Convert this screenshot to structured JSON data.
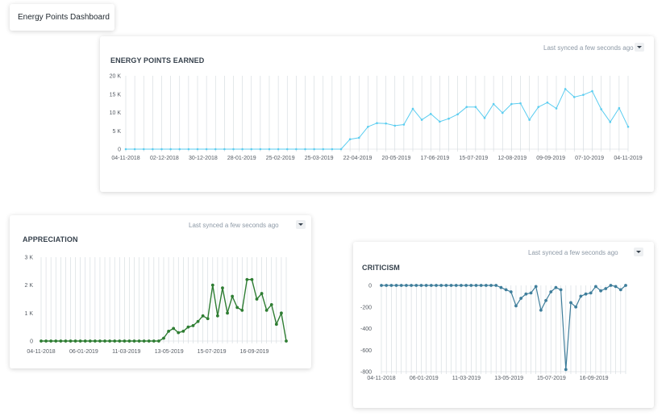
{
  "dashboard": {
    "title": "Energy Points Dashboard"
  },
  "sync_label": "Last synced a few seconds ago",
  "colors": {
    "energy": "#5bcdf0",
    "appreciation": "#2e7d32",
    "criticism": "#3f7e9b",
    "grid": "#d1d8dd"
  },
  "chart_data": [
    {
      "id": "energy",
      "type": "line",
      "title": "ENERGY POINTS EARNED",
      "ylim": [
        0,
        20000
      ],
      "yticks": [
        "0",
        "5 K",
        "10 K",
        "15 K",
        "20 K"
      ],
      "xtick_labels": [
        "04-11-2018",
        "02-12-2018",
        "30-12-2018",
        "28-01-2019",
        "25-02-2019",
        "25-03-2019",
        "22-04-2019",
        "20-05-2019",
        "17-06-2019",
        "15-07-2019",
        "12-08-2019",
        "09-09-2019",
        "07-10-2019",
        "04-11-2019"
      ],
      "values": [
        0,
        0,
        0,
        0,
        0,
        0,
        0,
        0,
        0,
        0,
        0,
        0,
        0,
        0,
        0,
        0,
        0,
        0,
        0,
        0,
        0,
        0,
        0,
        0,
        0,
        2700,
        3100,
        6100,
        7100,
        7000,
        6400,
        6700,
        11000,
        8000,
        9600,
        7500,
        8300,
        9500,
        11500,
        11500,
        8500,
        12300,
        9900,
        12300,
        12500,
        8000,
        11500,
        12700,
        11100,
        16400,
        14200,
        14800,
        15800,
        10900,
        7400,
        11200,
        6100
      ]
    },
    {
      "id": "appreciation",
      "type": "line",
      "title": "APPRECIATION",
      "ylim": [
        0,
        3000
      ],
      "yticks": [
        "0",
        "1 K",
        "2 K",
        "3 K"
      ],
      "xtick_labels": [
        "04-11-2018",
        "06-01-2019",
        "11-03-2019",
        "13-05-2019",
        "15-07-2019",
        "16-09-2019"
      ],
      "values": [
        0,
        0,
        0,
        0,
        0,
        0,
        0,
        0,
        0,
        0,
        0,
        0,
        0,
        0,
        0,
        0,
        0,
        0,
        0,
        0,
        0,
        0,
        0,
        0,
        0,
        100,
        350,
        450,
        300,
        350,
        500,
        550,
        700,
        900,
        800,
        2000,
        900,
        1900,
        1000,
        1600,
        1200,
        1100,
        2200,
        2200,
        1500,
        1700,
        1100,
        1300,
        600,
        1000,
        0
      ]
    },
    {
      "id": "criticism",
      "type": "line",
      "title": "CRITICISM",
      "ylim": [
        -800,
        0
      ],
      "yticks": [
        "-800",
        "-600",
        "-400",
        "-200",
        "0"
      ],
      "xtick_labels": [
        "04-11-2018",
        "06-01-2019",
        "11-03-2019",
        "13-05-2019",
        "15-07-2019",
        "16-09-2019"
      ],
      "values": [
        0,
        0,
        0,
        0,
        0,
        0,
        0,
        0,
        0,
        0,
        0,
        0,
        0,
        0,
        0,
        0,
        0,
        0,
        0,
        0,
        0,
        0,
        0,
        0,
        -20,
        -40,
        -60,
        -190,
        -120,
        -80,
        -70,
        -10,
        -230,
        -140,
        -60,
        -20,
        -40,
        -780,
        -160,
        -200,
        -100,
        -80,
        -70,
        -10,
        -50,
        -30,
        0,
        -10,
        -40,
        0
      ]
    }
  ]
}
